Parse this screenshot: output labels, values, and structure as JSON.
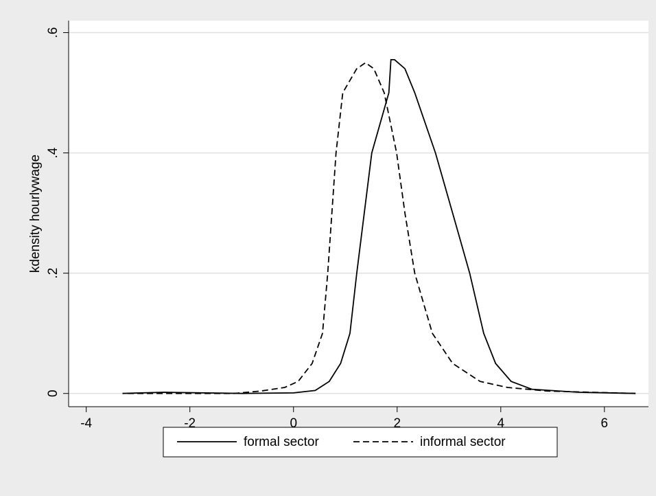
{
  "chart_data": {
    "type": "line",
    "ylabel": "kdensity hourlywage",
    "xlim": [
      -4.34,
      6.85
    ],
    "ylim": [
      -0.022,
      0.62
    ],
    "xticks": [
      -4,
      -2,
      0,
      2,
      4,
      6
    ],
    "yticks": [
      0,
      {
        "value": 0.2,
        "label": ".2"
      },
      {
        "value": 0.4,
        "label": ".4"
      },
      {
        "value": 0.6,
        "label": ".6"
      }
    ],
    "grid": true,
    "legend": "bottom",
    "series": [
      {
        "name": "formal sector",
        "color": "#000000",
        "style": "solid",
        "x": [
          -3.3,
          -2.5,
          -1,
          0,
          0.42,
          0.69,
          0.91,
          1.09,
          1.22,
          1.51,
          1.84,
          1.88,
          1.95,
          2.15,
          2.34,
          2.74,
          3.07,
          3.4,
          3.67,
          3.9,
          4.2,
          4.6,
          5.5,
          6.6
        ],
        "values": [
          0,
          0.002,
          0,
          0.001,
          0.005,
          0.02,
          0.05,
          0.1,
          0.2,
          0.4,
          0.5,
          0.555,
          0.555,
          0.54,
          0.5,
          0.4,
          0.3,
          0.2,
          0.1,
          0.05,
          0.02,
          0.007,
          0.002,
          0
        ]
      },
      {
        "name": "informal sector",
        "color": "#000000",
        "style": "dashed",
        "x": [
          -3.2,
          -1.15,
          -0.63,
          -0.17,
          0.09,
          0.36,
          0.56,
          0.66,
          0.82,
          0.95,
          1.22,
          1.39,
          1.55,
          1.75,
          1.99,
          2.15,
          2.34,
          2.68,
          3.07,
          3.6,
          4.13,
          4.9,
          6.6
        ],
        "values": [
          0,
          0,
          0.004,
          0.01,
          0.02,
          0.05,
          0.1,
          0.2,
          0.4,
          0.5,
          0.54,
          0.55,
          0.54,
          0.5,
          0.4,
          0.3,
          0.2,
          0.1,
          0.05,
          0.02,
          0.01,
          0.004,
          0
        ]
      }
    ]
  }
}
